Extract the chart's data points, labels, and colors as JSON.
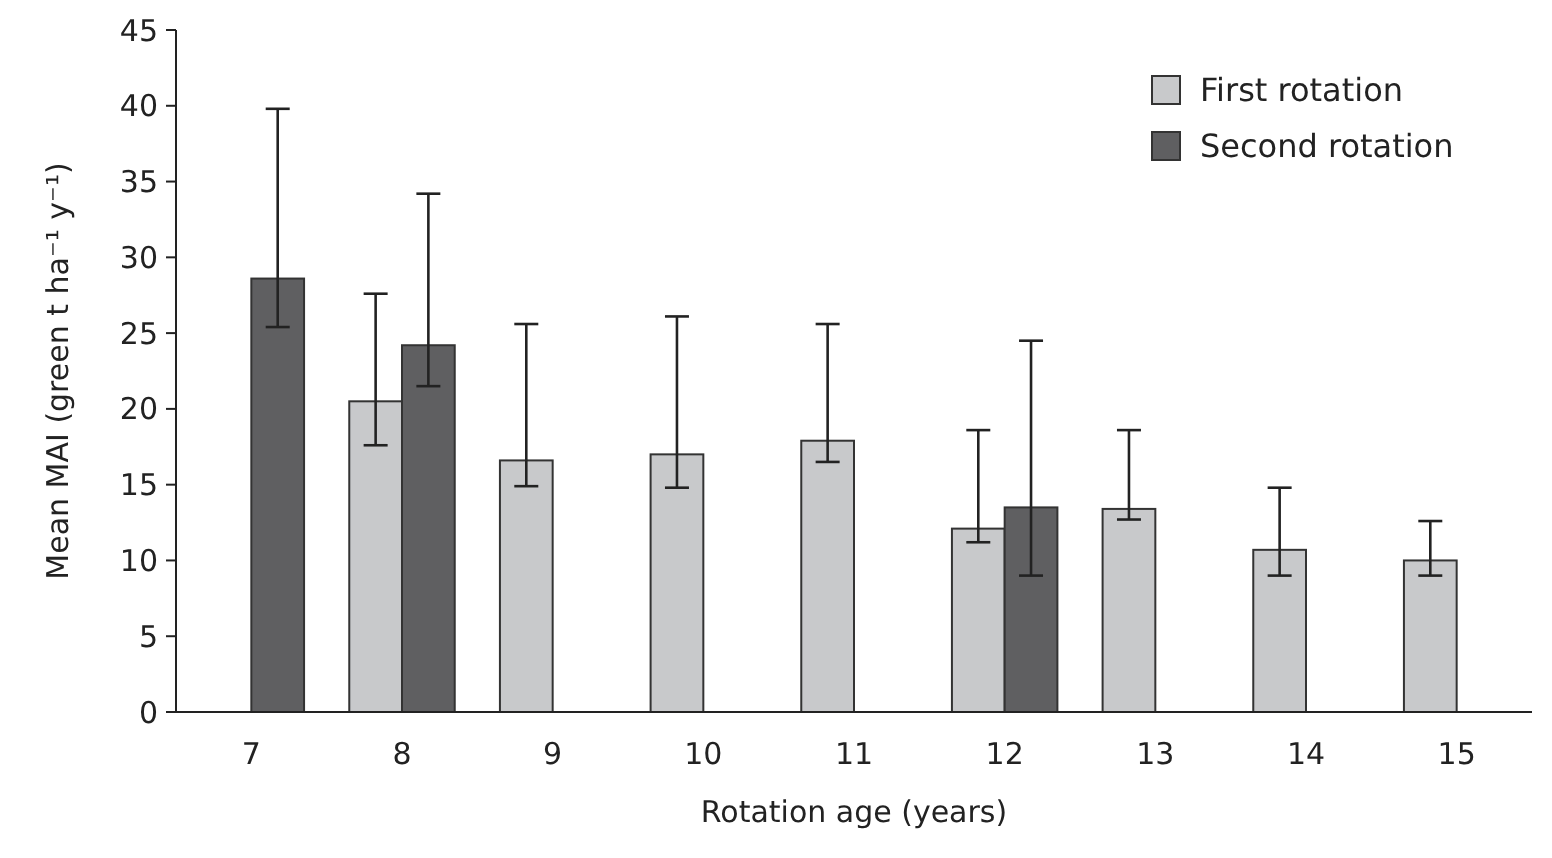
{
  "chart_data": {
    "type": "bar",
    "xlabel": "Rotation age (years)",
    "ylabel": "Mean MAI (green t ha⁻¹ y⁻¹)",
    "categories": [
      "7",
      "8",
      "9",
      "10",
      "11",
      "12",
      "13",
      "14",
      "15"
    ],
    "series": [
      {
        "name": "First rotation",
        "color": "#c8c9cb",
        "values": [
          null,
          20.5,
          16.6,
          17.0,
          17.9,
          12.1,
          13.4,
          10.7,
          10.0
        ],
        "errors": [
          null,
          [
            17.6,
            27.6
          ],
          [
            14.9,
            25.6
          ],
          [
            14.8,
            26.1
          ],
          [
            16.5,
            25.6
          ],
          [
            11.2,
            18.6
          ],
          [
            12.7,
            18.6
          ],
          [
            9.0,
            14.8
          ],
          [
            9.0,
            12.6
          ]
        ]
      },
      {
        "name": "Second rotation",
        "color": "#5f5f61",
        "values": [
          28.6,
          24.2,
          null,
          null,
          null,
          13.5,
          null,
          null,
          null
        ],
        "errors": [
          [
            25.4,
            39.8
          ],
          [
            21.5,
            34.2
          ],
          null,
          null,
          null,
          [
            9.0,
            24.5
          ],
          null,
          null,
          null
        ]
      }
    ],
    "ylim": [
      0,
      45
    ],
    "yticks": [
      0,
      5,
      10,
      15,
      20,
      25,
      30,
      35,
      40,
      45
    ],
    "grid": false,
    "legend": "top right"
  }
}
